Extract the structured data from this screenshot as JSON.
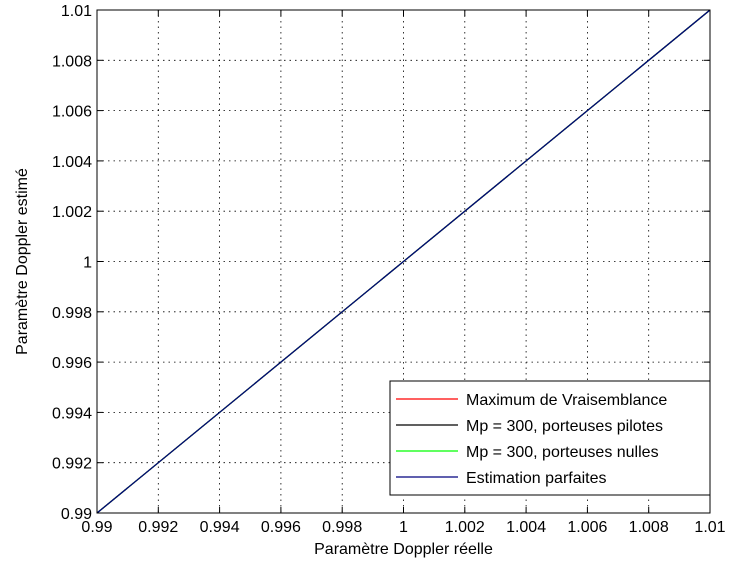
{
  "chart_data": {
    "type": "line",
    "xlabel": "Paramètre Doppler réelle",
    "ylabel": "Paramètre Doppler estimé",
    "xlim": [
      0.99,
      1.01
    ],
    "ylim": [
      0.99,
      1.01
    ],
    "xticks": [
      "0.99",
      "0.992",
      "0.994",
      "0.996",
      "0.998",
      "1",
      "1.002",
      "1.004",
      "1.006",
      "1.008",
      "1.01"
    ],
    "yticks": [
      "0.99",
      "0.992",
      "0.994",
      "0.996",
      "0.998",
      "1",
      "1.002",
      "1.004",
      "1.006",
      "1.008",
      "1.01"
    ],
    "grid": "dotted",
    "legend_position": "bottom-right",
    "series": [
      {
        "name": "Maximum de Vraisemblance",
        "color": "#ff0000",
        "x": [
          0.99,
          1.01
        ],
        "y": [
          0.99,
          1.01
        ]
      },
      {
        "name": "Mp = 300, porteuses pilotes",
        "color": "#000000",
        "x": [
          0.99,
          1.01
        ],
        "y": [
          0.99,
          1.01
        ]
      },
      {
        "name": "Mp = 300, porteuses nulles",
        "color": "#00ff00",
        "x": [
          0.99,
          1.01
        ],
        "y": [
          0.99,
          1.01
        ]
      },
      {
        "name": "Estimation parfaites",
        "color": "#00007f",
        "x": [
          0.99,
          1.01
        ],
        "y": [
          0.99,
          1.01
        ]
      }
    ]
  }
}
